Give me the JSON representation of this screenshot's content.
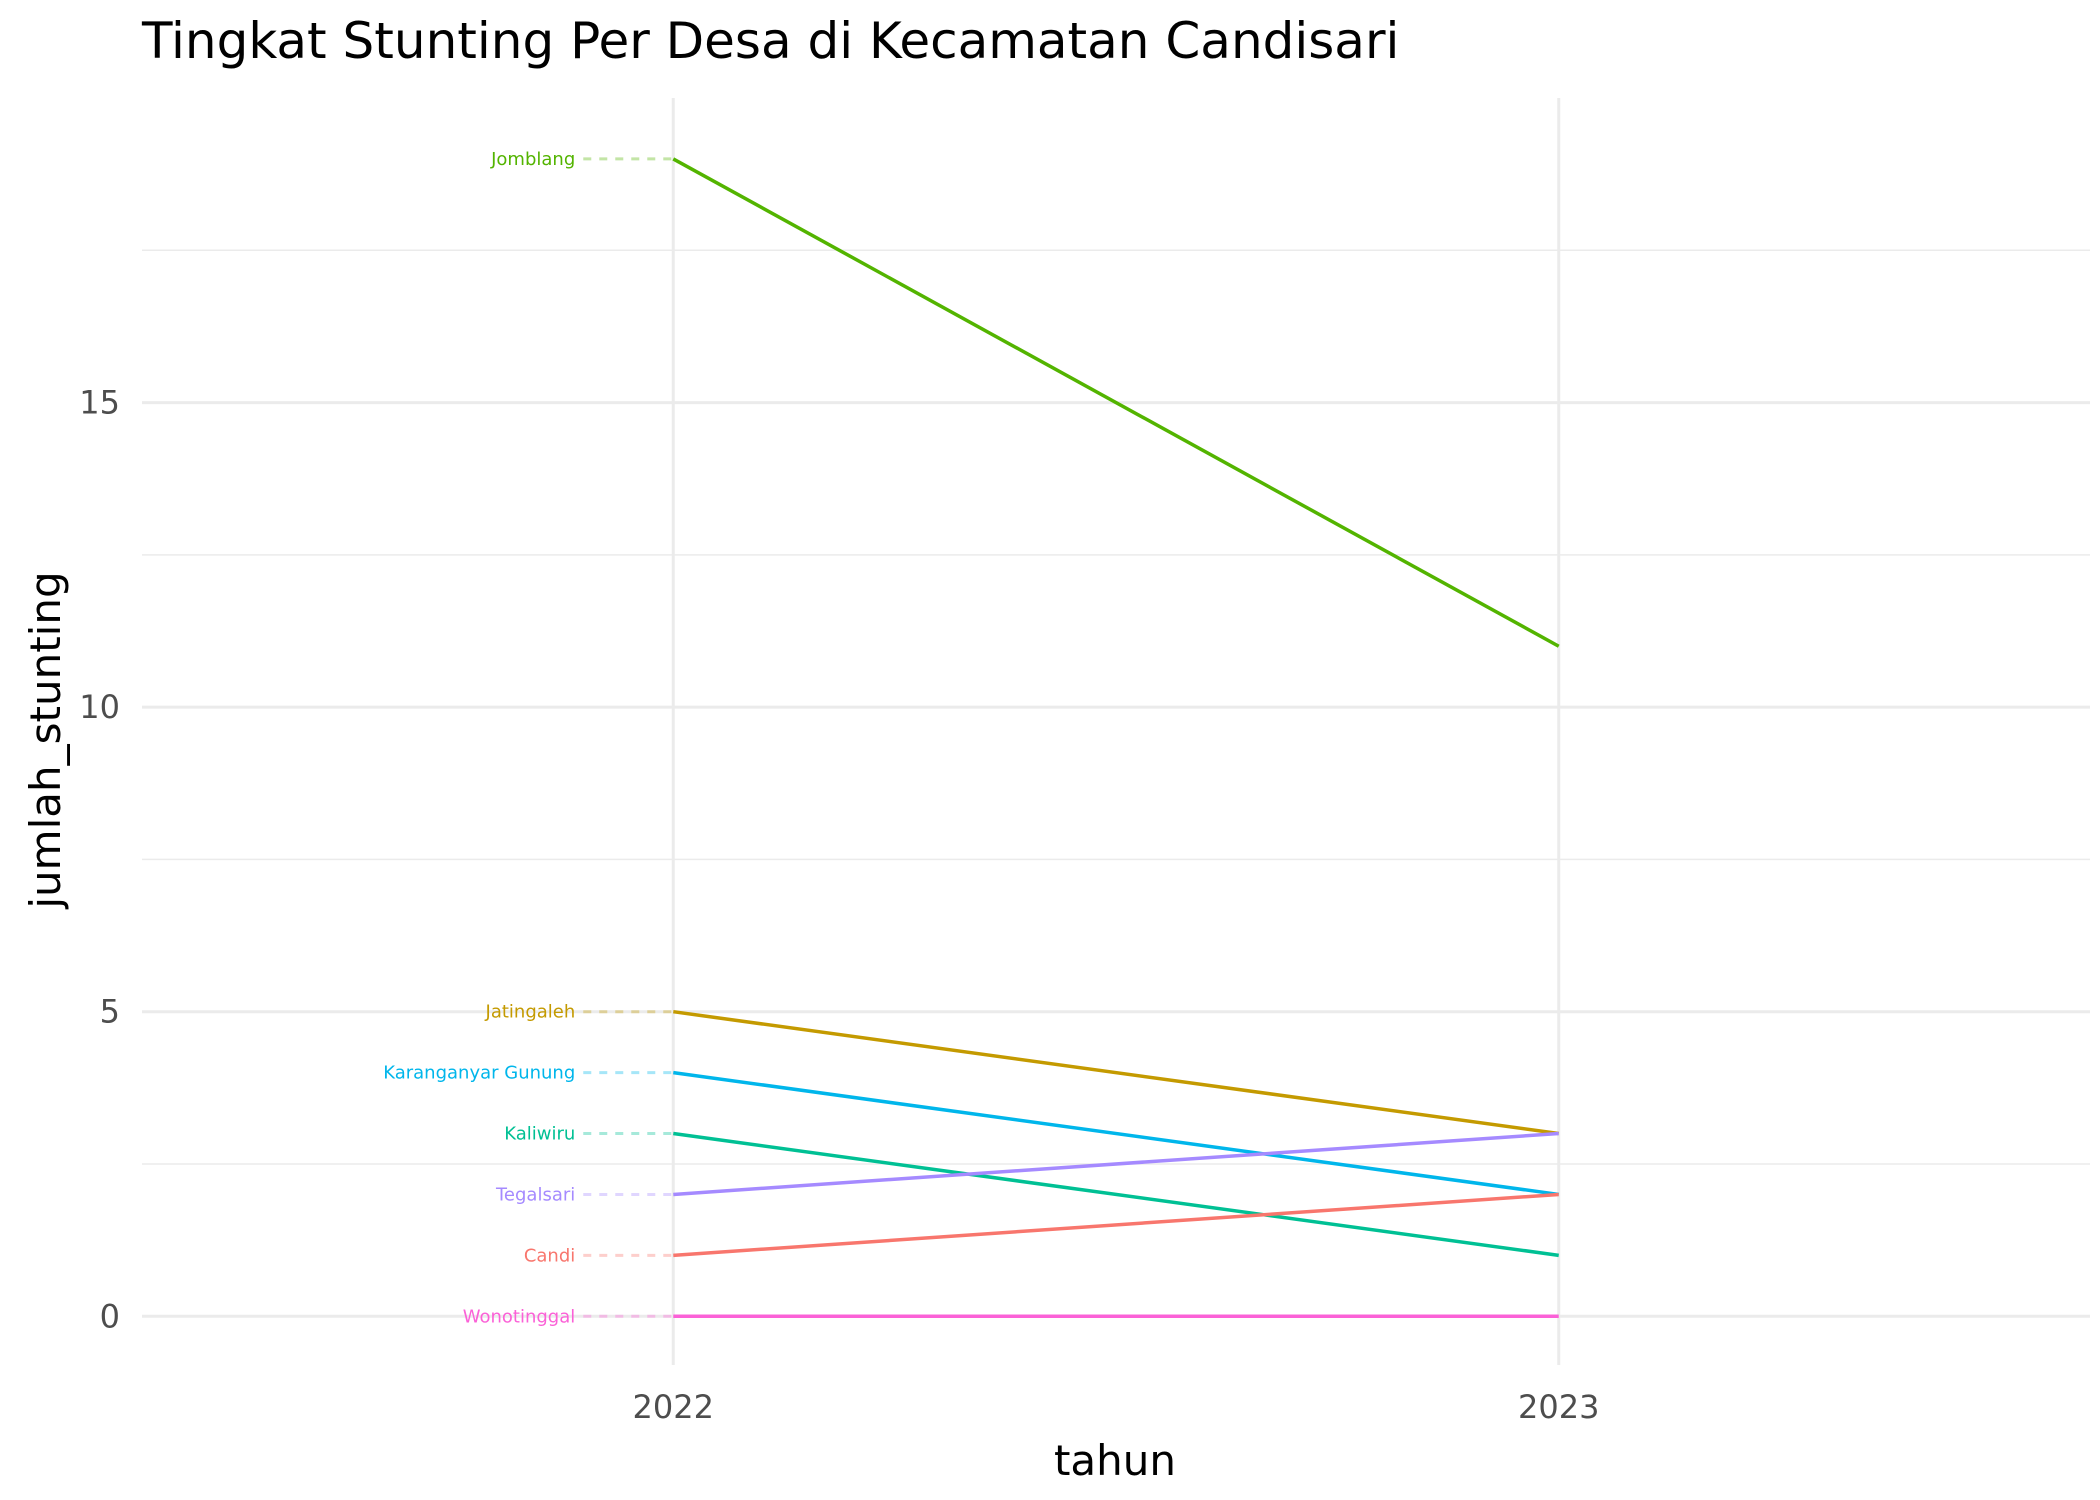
{
  "chart_data": {
    "type": "line",
    "title": "Tingkat Stunting Per Desa di Kecamatan Candisari",
    "xlabel": "tahun",
    "ylabel": "jumlah_stunting",
    "categories": [
      "2022",
      "2023"
    ],
    "xlim": [
      2021.4,
      2023.6
    ],
    "ylim": [
      -0.8,
      20
    ],
    "y_ticks": [
      0,
      5,
      10,
      15
    ],
    "y_minor_ticks": [
      2.5,
      7.5,
      12.5,
      17.5
    ],
    "grid": true,
    "legend": "labels at left of lines (direct labels)",
    "series": [
      {
        "name": "Jomblang",
        "values": [
          19,
          11
        ],
        "color": "#53b400"
      },
      {
        "name": "Jatingaleh",
        "values": [
          5,
          3
        ],
        "color": "#c49a00"
      },
      {
        "name": "Karanganyar Gunung",
        "values": [
          4,
          2
        ],
        "color": "#00b6eb"
      },
      {
        "name": "Kaliwiru",
        "values": [
          3,
          1
        ],
        "color": "#00c094"
      },
      {
        "name": "Tegalsari",
        "values": [
          2,
          3
        ],
        "color": "#a58aff"
      },
      {
        "name": "Candi",
        "values": [
          1,
          2
        ],
        "color": "#f8766d"
      },
      {
        "name": "Wonotinggal",
        "values": [
          0,
          0
        ],
        "color": "#fb61d7"
      }
    ]
  }
}
